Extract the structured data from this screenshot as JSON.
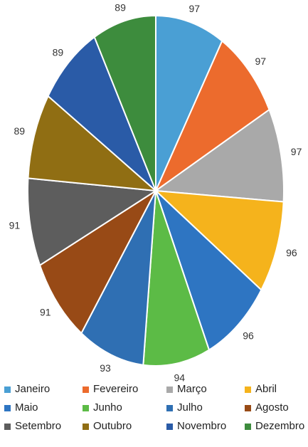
{
  "chart_data": {
    "type": "pie",
    "categories": [
      "Janeiro",
      "Fevereiro",
      "Março",
      "Abril",
      "Maio",
      "Junho",
      "Julho",
      "Agosto",
      "Setembro",
      "Outubro",
      "Novembro",
      "Dezembro"
    ],
    "values": [
      97,
      97,
      97,
      96,
      96,
      94,
      93,
      91,
      91,
      89,
      89,
      89
    ],
    "data_labels": [
      "97",
      "97",
      "97",
      "96",
      "96",
      "94",
      "93",
      "91",
      "91",
      "89",
      "89",
      "89"
    ],
    "colors": [
      "#4a9fd4",
      "#ec6b2d",
      "#a9a9a9",
      "#f5b31c",
      "#2e75c2",
      "#5cbb46",
      "#2f6fb3",
      "#984a16",
      "#5d5d5d",
      "#906e13",
      "#2a5ba7",
      "#3d8c3d"
    ],
    "legend_position": "bottom",
    "start_angle": "12 o'clock, clockwise",
    "legend_order": [
      "Janeiro",
      "Fevereiro",
      "Março",
      "Abril",
      "Maio",
      "Junho",
      "Julho",
      "Agosto",
      "Setembro",
      "Outubro",
      "Novembro",
      "Dezembro"
    ]
  }
}
